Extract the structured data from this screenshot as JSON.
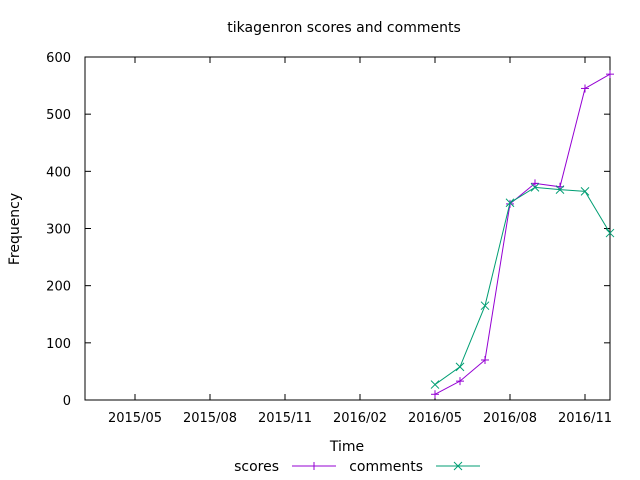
{
  "chart_data": {
    "type": "line",
    "title": "tikagenron scores and comments",
    "xlabel": "Time",
    "ylabel": "Frequency",
    "x_tick_labels": [
      "2015/05",
      "2015/08",
      "2015/11",
      "2016/02",
      "2016/05",
      "2016/08",
      "2016/11"
    ],
    "x_tick_values": [
      "2015-05",
      "2015-08",
      "2015-11",
      "2016-02",
      "2016-05",
      "2016-08",
      "2016-11"
    ],
    "xlim": [
      "2015-03",
      "2016-12"
    ],
    "ylim": [
      0,
      600
    ],
    "y_ticks": [
      0,
      100,
      200,
      300,
      400,
      500,
      600
    ],
    "grid": false,
    "legend_position": "bottom",
    "series": [
      {
        "name": "scores",
        "color": "#9400D3",
        "marker": "plus",
        "x": [
          "2016-05",
          "2016-06",
          "2016-07",
          "2016-08",
          "2016-09",
          "2016-10",
          "2016-11",
          "2016-12"
        ],
        "values": [
          10,
          33,
          70,
          343,
          379,
          373,
          545,
          570
        ]
      },
      {
        "name": "comments",
        "color": "#009E73",
        "marker": "cross",
        "x": [
          "2016-05",
          "2016-06",
          "2016-07",
          "2016-08",
          "2016-09",
          "2016-10",
          "2016-11",
          "2016-12"
        ],
        "values": [
          27,
          58,
          165,
          345,
          372,
          368,
          365,
          292
        ]
      }
    ]
  }
}
